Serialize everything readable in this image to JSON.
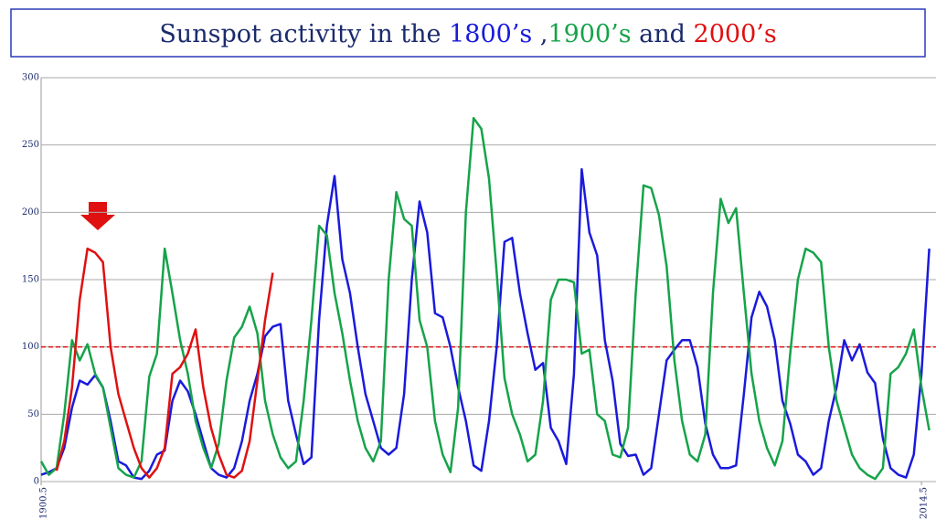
{
  "chart_data": {
    "type": "line",
    "title": [
      {
        "text": "Sunspot activity in the ",
        "color": "#1a2a6c"
      },
      {
        "text": "1800’s",
        "color": "#1a1adc"
      },
      {
        "text": " ,",
        "color": "#1a2a6c"
      },
      {
        "text": "1900’s",
        "color": "#16a34a"
      },
      {
        "text": " and ",
        "color": "#1a2a6c"
      },
      {
        "text": "2000’s",
        "color": "#e01010"
      }
    ],
    "x": [
      1900.5,
      1901.5,
      1902.5,
      1903.5,
      1904.5,
      1905.5,
      1906.5,
      1907.5,
      1908.5,
      1909.5,
      1910.5,
      1911.5,
      1912.5,
      1913.5,
      1914.5,
      1915.5,
      1916.5,
      1917.5,
      1918.5,
      1919.5,
      1920.5,
      1921.5,
      1922.5,
      1923.5,
      1924.5,
      1925.5,
      1926.5,
      1927.5,
      1928.5,
      1929.5,
      1930.5,
      1931.5,
      1932.5,
      1933.5,
      1934.5,
      1935.5,
      1936.5,
      1937.5,
      1938.5,
      1939.5,
      1940.5,
      1941.5,
      1942.5,
      1943.5,
      1944.5,
      1945.5,
      1946.5,
      1947.5,
      1948.5,
      1949.5,
      1950.5,
      1951.5,
      1952.5,
      1953.5,
      1954.5,
      1955.5,
      1956.5,
      1957.5,
      1958.5,
      1959.5,
      1960.5,
      1961.5,
      1962.5,
      1963.5,
      1964.5,
      1965.5,
      1966.5,
      1967.5,
      1968.5,
      1969.5,
      1970.5,
      1971.5,
      1972.5,
      1973.5,
      1974.5,
      1975.5,
      1976.5,
      1977.5,
      1978.5,
      1979.5,
      1980.5,
      1981.5,
      1982.5,
      1983.5,
      1984.5,
      1985.5,
      1986.5,
      1987.5,
      1988.5,
      1989.5,
      1990.5,
      1991.5,
      1992.5,
      1993.5,
      1994.5,
      1995.5,
      1996.5,
      1997.5,
      1998.5,
      1999.5,
      2000.5,
      2001.5,
      2002.5,
      2003.5,
      2004.5,
      2005.5,
      2006.5,
      2007.5,
      2008.5,
      2009.5,
      2010.5,
      2011.5,
      2012.5,
      2013.5,
      2014.5,
      2015.5
    ],
    "series": [
      {
        "name": "1800’s",
        "color": "#1a1adc",
        "values": [
          5,
          7,
          10,
          25,
          55,
          75,
          72,
          79,
          70,
          45,
          15,
          12,
          3,
          2,
          8,
          20,
          23,
          60,
          75,
          67,
          50,
          30,
          10,
          5,
          3,
          10,
          30,
          60,
          80,
          108,
          115,
          117,
          60,
          35,
          13,
          18,
          120,
          190,
          227,
          165,
          140,
          100,
          65,
          45,
          25,
          20,
          25,
          65,
          150,
          208,
          185,
          125,
          122,
          100,
          70,
          45,
          12,
          8,
          45,
          100,
          178,
          181,
          140,
          110,
          83,
          88,
          40,
          30,
          13,
          80,
          232,
          185,
          168,
          105,
          75,
          28,
          19,
          20,
          5,
          10,
          50,
          90,
          98,
          105,
          105,
          85,
          43,
          20,
          10,
          10,
          12,
          65,
          122,
          141,
          130,
          105,
          60,
          43,
          20,
          15,
          5,
          10,
          45,
          70,
          105,
          90,
          102,
          81,
          73,
          32,
          10,
          5,
          3,
          20,
          80,
          173
        ]
      },
      {
        "name": "1900’s",
        "color": "#16a34a",
        "values": [
          15,
          5,
          10,
          50,
          105,
          90,
          102,
          80,
          70,
          40,
          10,
          5,
          3,
          15,
          78,
          95,
          173,
          140,
          105,
          80,
          45,
          25,
          10,
          28,
          75,
          107,
          115,
          130,
          110,
          60,
          35,
          18,
          10,
          15,
          60,
          120,
          190,
          183,
          140,
          110,
          75,
          45,
          25,
          15,
          30,
          150,
          215,
          195,
          190,
          120,
          100,
          45,
          20,
          7,
          55,
          200,
          270,
          262,
          225,
          155,
          77,
          50,
          35,
          15,
          20,
          60,
          135,
          150,
          150,
          148,
          95,
          98,
          50,
          45,
          20,
          18,
          40,
          140,
          220,
          218,
          198,
          160,
          90,
          45,
          20,
          15,
          35,
          140,
          210,
          192,
          203,
          140,
          80,
          45,
          25,
          12,
          30,
          95,
          150,
          173,
          170,
          163,
          100,
          60,
          40,
          20,
          10,
          5,
          2,
          10,
          80,
          85,
          95,
          113,
          70,
          38
        ]
      },
      {
        "name": "2000’s",
        "color": "#e01010",
        "values": [
          null,
          null,
          8,
          30,
          70,
          135,
          173,
          170,
          163,
          100,
          65,
          45,
          25,
          10,
          3,
          10,
          25,
          80,
          85,
          95,
          113,
          70,
          40,
          20,
          5,
          3,
          8,
          30,
          75,
          120,
          155,
          null,
          null,
          null,
          null,
          null,
          null,
          null,
          null,
          null,
          null,
          null,
          null,
          null,
          null,
          null,
          null,
          null,
          null,
          null,
          null,
          null,
          null,
          null,
          null,
          null,
          null,
          null,
          null,
          null,
          null,
          null,
          null,
          null,
          null,
          null,
          null,
          null,
          null,
          null,
          null,
          null,
          null,
          null,
          null,
          null,
          null,
          null,
          null,
          null,
          null,
          null,
          null,
          null,
          null,
          null,
          null,
          null,
          null,
          null,
          null,
          null,
          null,
          null,
          null,
          null,
          null,
          null,
          null,
          null,
          null,
          null,
          null,
          null,
          null,
          null,
          null,
          null,
          null,
          null,
          null,
          null,
          null,
          null,
          null,
          null
        ]
      }
    ],
    "xlim": [
      1900.5,
      2016.5
    ],
    "xticks": [
      1900.5,
      2014.5
    ],
    "ylim": [
      0,
      300
    ],
    "yticks": [
      0,
      50,
      100,
      150,
      200,
      250,
      300
    ],
    "grid": true,
    "reference_line": {
      "value": 100,
      "color": "#e01010"
    }
  }
}
